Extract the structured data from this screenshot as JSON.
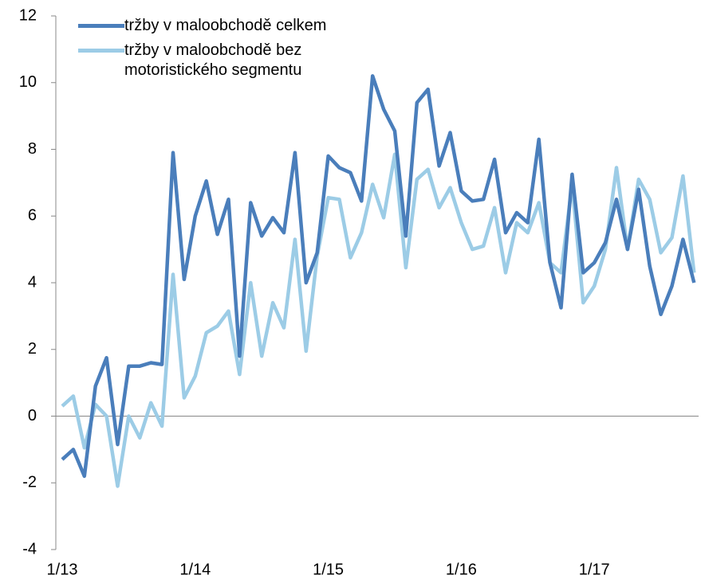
{
  "chart_data": {
    "type": "line",
    "categories": [
      "1/13",
      null,
      null,
      null,
      null,
      null,
      null,
      null,
      null,
      null,
      null,
      null,
      "1/14",
      null,
      null,
      null,
      null,
      null,
      null,
      null,
      null,
      null,
      null,
      null,
      "1/15",
      null,
      null,
      null,
      null,
      null,
      null,
      null,
      null,
      null,
      null,
      null,
      "1/16",
      null,
      null,
      null,
      null,
      null,
      null,
      null,
      null,
      null,
      null,
      null,
      "1/17",
      null,
      null,
      null,
      null,
      null,
      null,
      null,
      null,
      null
    ],
    "series": [
      {
        "name": "tržby v maloobchodě celkem",
        "color": "#4a7ebb",
        "values": [
          -1.3,
          -1.0,
          -1.8,
          0.9,
          1.75,
          -0.85,
          1.5,
          1.5,
          1.6,
          1.55,
          7.9,
          4.1,
          6.0,
          7.05,
          5.45,
          6.5,
          1.8,
          6.4,
          5.4,
          5.95,
          5.5,
          7.9,
          4.0,
          4.9,
          7.8,
          7.45,
          7.3,
          6.45,
          10.2,
          9.2,
          8.55,
          5.4,
          9.4,
          9.8,
          7.5,
          8.5,
          6.75,
          6.45,
          6.5,
          7.7,
          5.5,
          6.1,
          5.8,
          8.3,
          4.6,
          3.25,
          7.25,
          4.3,
          4.6,
          5.2,
          6.5,
          5.0,
          6.8,
          4.5,
          3.05,
          3.9,
          5.3,
          4.0
        ]
      },
      {
        "name": "tržby v maloobchodě bez motoristického segmentu",
        "color": "#9ccce6",
        "values": [
          0.3,
          0.6,
          -0.95,
          0.35,
          0.0,
          -2.1,
          0.0,
          -0.65,
          0.4,
          -0.3,
          4.25,
          0.55,
          1.2,
          2.5,
          2.7,
          3.15,
          1.25,
          4.0,
          1.8,
          3.4,
          2.65,
          5.3,
          1.95,
          4.8,
          6.55,
          6.5,
          4.75,
          5.5,
          6.95,
          5.95,
          7.85,
          4.45,
          7.1,
          7.4,
          6.25,
          6.85,
          5.8,
          5.0,
          5.1,
          6.25,
          4.3,
          5.8,
          5.5,
          6.4,
          4.6,
          4.3,
          6.95,
          3.4,
          3.9,
          5.0,
          7.45,
          5.0,
          7.1,
          6.5,
          4.9,
          5.35,
          7.2,
          4.3
        ]
      }
    ],
    "ylim": [
      -4,
      12
    ],
    "yticks": [
      -4,
      -2,
      0,
      2,
      4,
      6,
      8,
      10,
      12
    ],
    "legend": "upper left"
  }
}
